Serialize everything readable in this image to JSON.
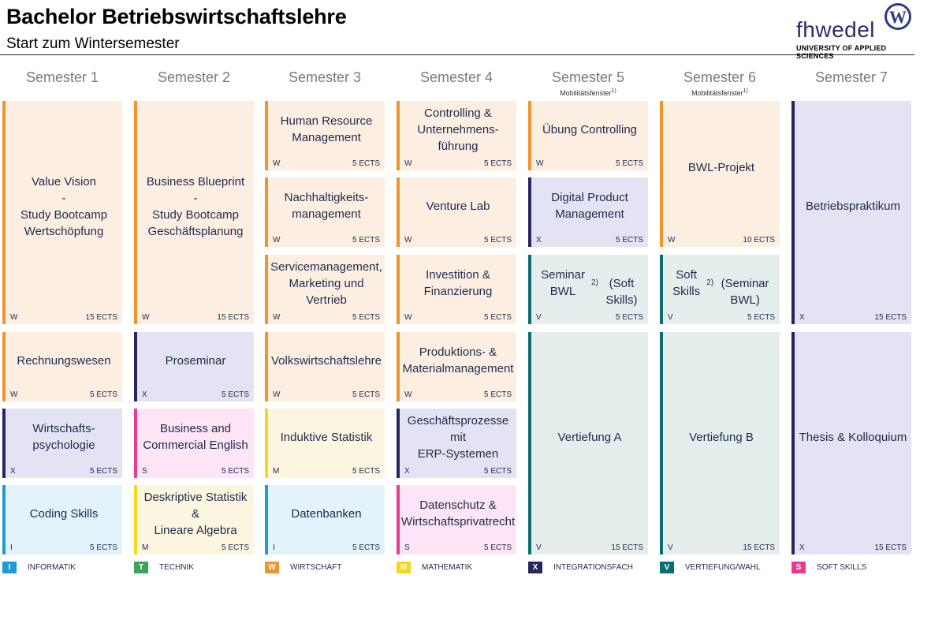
{
  "header": {
    "title": "Bachelor Betriebswirtschaftslehre",
    "subtitle": "Start zum Wintersemester",
    "logo_text": "fhwedel",
    "logo_mark": "W",
    "logo_sub": "UNIVERSITY OF APPLIED SCIENCES"
  },
  "semesters": [
    {
      "label": "Semester 1",
      "note": ""
    },
    {
      "label": "Semester 2",
      "note": ""
    },
    {
      "label": "Semester 3",
      "note": ""
    },
    {
      "label": "Semester 4",
      "note": ""
    },
    {
      "label": "Semester 5",
      "note": "Mobilitätsfenster",
      "note_sup": "1)"
    },
    {
      "label": "Semester 6",
      "note": "Mobilitätsfenster",
      "note_sup": "1)"
    },
    {
      "label": "Semester 7",
      "note": ""
    }
  ],
  "modules": [
    {
      "semester": 1,
      "name": "Value Vision\n-\nStudy Bootcamp\nWertschöpfung",
      "category": "W",
      "ects": "15 ECTS"
    },
    {
      "semester": 1,
      "name": "Rechnungswesen",
      "category": "W",
      "ects": "5 ECTS"
    },
    {
      "semester": 1,
      "name": "Wirtschafts-\npsychologie",
      "category": "X",
      "ects": "5 ECTS"
    },
    {
      "semester": 1,
      "name": "Coding Skills",
      "category": "I",
      "ects": "5 ECTS"
    },
    {
      "semester": 2,
      "name": "Business Blueprint\n-\nStudy Bootcamp\nGeschäftsplanung",
      "category": "W",
      "ects": "15 ECTS"
    },
    {
      "semester": 2,
      "name": "Proseminar",
      "category": "X",
      "ects": "5 ECTS"
    },
    {
      "semester": 2,
      "name": "Business and\nCommercial English",
      "category": "S",
      "ects": "5 ECTS"
    },
    {
      "semester": 2,
      "name": "Deskriptive Statistik &\nLineare Algebra",
      "category": "M",
      "ects": "5 ECTS"
    },
    {
      "semester": 3,
      "name": "Human Resource\nManagement",
      "category": "W",
      "ects": "5 ECTS"
    },
    {
      "semester": 3,
      "name": "Nachhaltigkeits-\nmanagement",
      "category": "W",
      "ects": "5 ECTS"
    },
    {
      "semester": 3,
      "name": "Servicemanagement,\nMarketing und Vertrieb",
      "category": "W",
      "ects": "5 ECTS"
    },
    {
      "semester": 3,
      "name": "Volkswirtschaftslehre",
      "category": "W",
      "ects": "5 ECTS"
    },
    {
      "semester": 3,
      "name": "Induktive Statistik",
      "category": "M",
      "ects": "5 ECTS"
    },
    {
      "semester": 3,
      "name": "Datenbanken",
      "category": "I",
      "ects": "5 ECTS"
    },
    {
      "semester": 4,
      "name": "Controlling &\nUnternehmens-\nführung",
      "category": "W",
      "ects": "5 ECTS"
    },
    {
      "semester": 4,
      "name": "Venture Lab",
      "category": "W",
      "ects": "5 ECTS"
    },
    {
      "semester": 4,
      "name": "Investition &\nFinanzierung",
      "category": "W",
      "ects": "5 ECTS"
    },
    {
      "semester": 4,
      "name": "Produktions- &\nMaterialmanagement",
      "category": "W",
      "ects": "5 ECTS"
    },
    {
      "semester": 4,
      "name": "Geschäftsprozesse mit\nERP-Systemen",
      "category": "X",
      "ects": "5 ECTS"
    },
    {
      "semester": 4,
      "name": "Datenschutz &\nWirtschaftsprivatrecht",
      "category": "S",
      "ects": "5 ECTS"
    },
    {
      "semester": 5,
      "name": "Übung Controlling",
      "category": "W",
      "ects": "5 ECTS"
    },
    {
      "semester": 5,
      "name": "Digital Product\nManagement",
      "category": "X",
      "ects": "5 ECTS"
    },
    {
      "semester": 5,
      "name": "Seminar BWL",
      "name_sup": "2)",
      "name_line2": "(Soft Skills)",
      "category": "V",
      "ects": "5 ECTS"
    },
    {
      "semester": 5,
      "name": "Vertiefung A",
      "category": "V",
      "ects": "15 ECTS"
    },
    {
      "semester": 6,
      "name": "BWL-Projekt",
      "category": "W",
      "ects": "10 ECTS"
    },
    {
      "semester": 6,
      "name": "Soft Skills",
      "name_sup": "2)",
      "name_line2": "(Seminar BWL)",
      "category": "V",
      "ects": "5 ECTS"
    },
    {
      "semester": 6,
      "name": "Vertiefung B",
      "category": "V",
      "ects": "15 ECTS"
    },
    {
      "semester": 7,
      "name": "Betriebspraktikum",
      "category": "X",
      "ects": "15 ECTS"
    },
    {
      "semester": 7,
      "name": "Thesis & Kolloquium",
      "category": "X",
      "ects": "15 ECTS"
    }
  ],
  "legend": [
    {
      "code": "I",
      "label": "INFORMATIK",
      "color": "#1e9ad6"
    },
    {
      "code": "T",
      "label": "TECHNIK",
      "color": "#3aa55c"
    },
    {
      "code": "W",
      "label": "WIRTSCHAFT",
      "color": "#f0952d"
    },
    {
      "code": "M",
      "label": "MATHEMATIK",
      "color": "#f4d91b"
    },
    {
      "code": "X",
      "label": "INTEGRATIONSFACH",
      "color": "#26275e"
    },
    {
      "code": "V",
      "label": "VERTIEFUNG/WAHL",
      "color": "#0b6e6e"
    },
    {
      "code": "S",
      "label": "SOFT SKILLS",
      "color": "#e63b8f"
    }
  ]
}
